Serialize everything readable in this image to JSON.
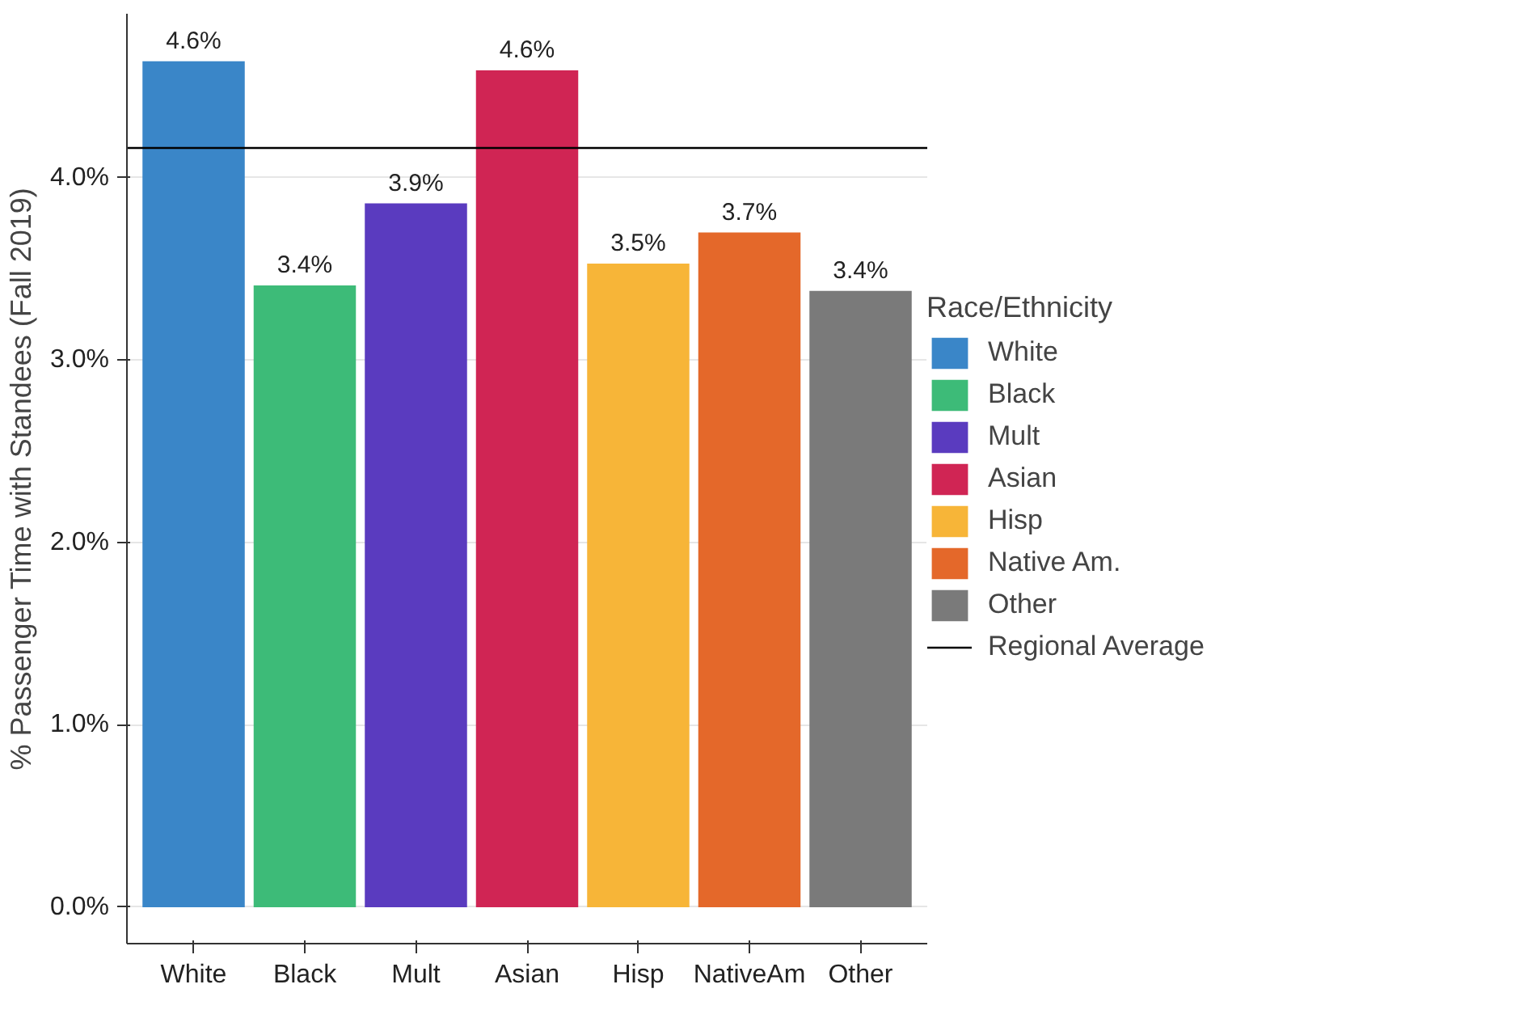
{
  "chart_data": {
    "type": "bar",
    "ylabel": "% Passenger Time with Standees (Fall 2019)",
    "legend_title": "Race/Ethnicity",
    "categories": [
      "White",
      "Black",
      "Mult",
      "Asian",
      "Hisp",
      "NativeAm",
      "Other"
    ],
    "series": [
      {
        "name": "White",
        "color": "#3a86c8",
        "values": [
          4.64,
          null,
          null,
          null,
          null,
          null,
          null
        ],
        "value_labels": [
          "4.6%",
          null,
          null,
          null,
          null,
          null,
          null
        ]
      },
      {
        "name": "Black",
        "color": "#3dbb78",
        "values": [
          null,
          3.41,
          null,
          null,
          null,
          null,
          null
        ],
        "value_labels": [
          null,
          "3.4%",
          null,
          null,
          null,
          null,
          null
        ]
      },
      {
        "name": "Mult",
        "color": "#5a3bbf",
        "values": [
          null,
          null,
          3.86,
          null,
          null,
          null,
          null
        ],
        "value_labels": [
          null,
          null,
          "3.9%",
          null,
          null,
          null,
          null
        ]
      },
      {
        "name": "Asian",
        "color": "#d02554",
        "values": [
          null,
          null,
          null,
          4.59,
          null,
          null,
          null
        ],
        "value_labels": [
          null,
          null,
          null,
          "4.6%",
          null,
          null,
          null
        ]
      },
      {
        "name": "Hisp",
        "color": "#f7b538",
        "values": [
          null,
          null,
          null,
          null,
          3.53,
          null,
          null
        ],
        "value_labels": [
          null,
          null,
          null,
          null,
          "3.5%",
          null,
          null
        ]
      },
      {
        "name": "Native Am.",
        "color": "#e4682a",
        "values": [
          null,
          null,
          null,
          null,
          null,
          3.7,
          null
        ],
        "value_labels": [
          null,
          null,
          null,
          null,
          null,
          "3.7%",
          null
        ]
      },
      {
        "name": "Other",
        "color": "#7a7a7a",
        "values": [
          null,
          null,
          null,
          null,
          null,
          null,
          3.38
        ],
        "value_labels": [
          null,
          null,
          null,
          null,
          null,
          null,
          "3.4%"
        ]
      }
    ],
    "ylim": [
      -0.2,
      4.9
    ],
    "yticks": [
      {
        "value": 0,
        "label": "0.0%"
      },
      {
        "value": 1,
        "label": "1.0%"
      },
      {
        "value": 2,
        "label": "2.0%"
      },
      {
        "value": 3,
        "label": "3.0%"
      },
      {
        "value": 4,
        "label": "4.0%"
      }
    ],
    "ref_lines": [
      {
        "axis": "y",
        "value": 4.16,
        "label": "Regional Average",
        "color": "#000000"
      }
    ],
    "grid": "y",
    "legend": "right"
  }
}
